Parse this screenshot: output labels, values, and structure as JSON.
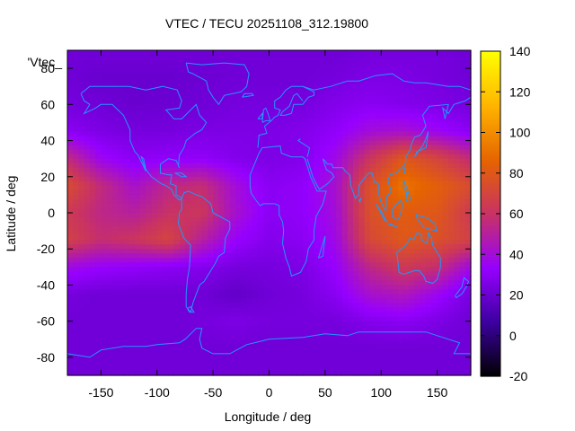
{
  "chart_data": {
    "type": "heatmap",
    "title": "VTEC / TECU 20251108_312.19800",
    "xlabel": "Longitude / deg",
    "ylabel": "Latitude / deg",
    "key_label": "'Vtec_",
    "xlim": [
      -180,
      180
    ],
    "ylim": [
      -90,
      90
    ],
    "zlim": [
      -20,
      140
    ],
    "x_ticks": [
      -150,
      -100,
      -50,
      0,
      50,
      100,
      150
    ],
    "y_ticks": [
      -80,
      -60,
      -40,
      -20,
      0,
      20,
      40,
      60,
      80
    ],
    "z_ticks": [
      -20,
      0,
      20,
      40,
      60,
      80,
      100,
      120,
      140
    ],
    "palette": [
      "#000000",
      "#3c00a0",
      "#9600ff",
      "#c83264",
      "#e66400",
      "#ffb400",
      "#ffff00"
    ],
    "coastline_color": "#2196ff",
    "grid_lon": [
      -180,
      -150,
      -120,
      -90,
      -60,
      -30,
      0,
      30,
      60,
      90,
      120,
      150,
      180
    ],
    "grid_lat": [
      87.5,
      75,
      60,
      45,
      30,
      15,
      0,
      -15,
      -30,
      -45,
      -60,
      -75,
      -87.5
    ],
    "vtec_grid": [
      [
        22,
        22,
        22,
        22,
        22,
        22,
        22,
        22,
        22,
        24,
        24,
        24,
        22
      ],
      [
        22,
        20,
        20,
        20,
        21,
        22,
        22,
        22,
        24,
        26,
        26,
        24,
        22
      ],
      [
        24,
        22,
        20,
        21,
        22,
        24,
        24,
        24,
        28,
        30,
        28,
        26,
        24
      ],
      [
        30,
        26,
        24,
        24,
        26,
        26,
        26,
        28,
        32,
        40,
        42,
        36,
        30
      ],
      [
        56,
        36,
        30,
        32,
        32,
        28,
        26,
        28,
        38,
        62,
        80,
        70,
        56
      ],
      [
        74,
        56,
        42,
        54,
        58,
        40,
        30,
        32,
        42,
        76,
        92,
        84,
        74
      ],
      [
        64,
        54,
        50,
        60,
        62,
        42,
        30,
        32,
        40,
        76,
        82,
        80,
        64
      ],
      [
        68,
        58,
        62,
        70,
        50,
        34,
        28,
        30,
        38,
        72,
        80,
        76,
        68
      ],
      [
        38,
        34,
        32,
        30,
        28,
        24,
        24,
        26,
        34,
        54,
        64,
        58,
        38
      ],
      [
        24,
        22,
        22,
        22,
        22,
        18,
        22,
        24,
        30,
        42,
        46,
        36,
        24
      ],
      [
        22,
        22,
        22,
        22,
        24,
        26,
        24,
        24,
        24,
        28,
        30,
        26,
        22
      ],
      [
        22,
        22,
        22,
        22,
        22,
        22,
        22,
        22,
        22,
        22,
        22,
        22,
        22
      ],
      [
        22,
        22,
        22,
        22,
        22,
        22,
        22,
        22,
        22,
        22,
        22,
        22,
        22
      ]
    ]
  }
}
